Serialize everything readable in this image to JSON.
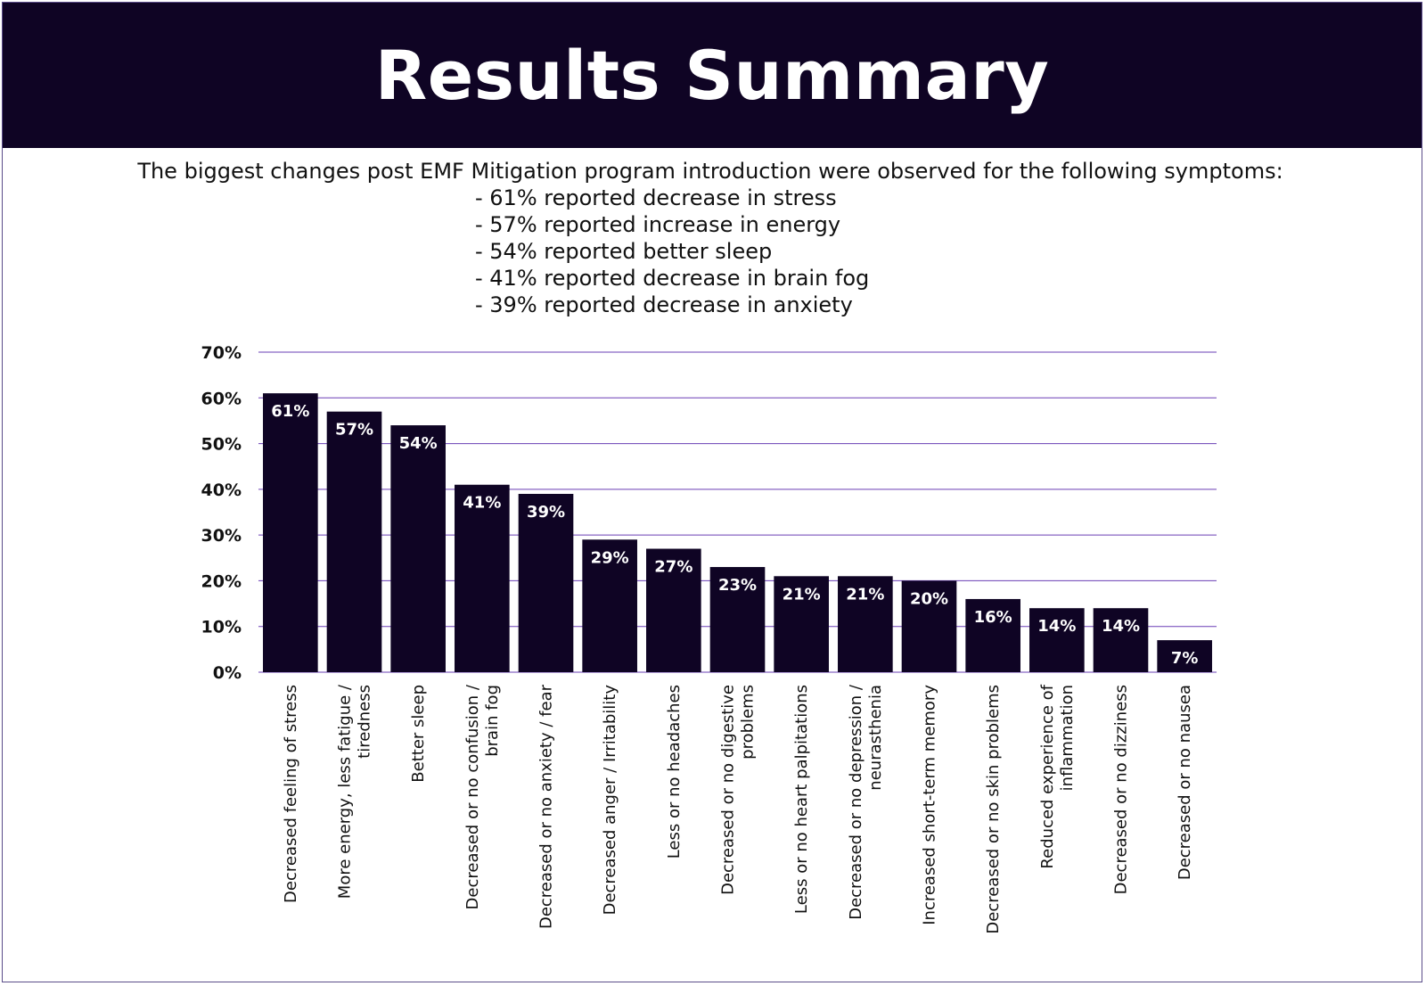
{
  "header": {
    "title": "Results Summary"
  },
  "intro": {
    "text": "The biggest changes post EMF Mitigation program introduction were observed for the following symptoms:",
    "bullets": [
      "- 61% reported decrease in stress",
      "- 57% reported increase in energy",
      "- 54% reported better sleep",
      "- 41% reported decrease in brain fog",
      "- 39% reported decrease in anxiety"
    ]
  },
  "colors": {
    "bar": "#0f0424",
    "grid": "#6a3fb5",
    "header_bg": "#0f0424"
  },
  "chart_data": {
    "type": "bar",
    "title": "",
    "xlabel": "",
    "ylabel": "",
    "ylim": [
      0,
      70
    ],
    "yticks": [
      0,
      10,
      20,
      30,
      40,
      50,
      60,
      70
    ],
    "ytick_labels": [
      "0%",
      "10%",
      "20%",
      "30%",
      "40%",
      "50%",
      "60%",
      "70%"
    ],
    "grid": true,
    "categories": [
      [
        "Decreased feeling of stress"
      ],
      [
        "More energy, less fatigue /",
        "tiredness"
      ],
      [
        "Better sleep"
      ],
      [
        "Decreased or no confusion /",
        "brain fog"
      ],
      [
        "Decreased or no anxiety / fear"
      ],
      [
        "Decreased anger / Irritability"
      ],
      [
        "Less or no headaches"
      ],
      [
        "Decreased or no digestive",
        "problems"
      ],
      [
        "Less or no heart palpitations"
      ],
      [
        "Decreased or no depression /",
        "neurasthenia"
      ],
      [
        "Increased short-term memory"
      ],
      [
        "Decreased or no skin problems"
      ],
      [
        "Reduced experience of",
        "inflammation"
      ],
      [
        "Decreased or no dizziness"
      ],
      [
        "Decreased or no nausea"
      ]
    ],
    "values": [
      61,
      57,
      54,
      41,
      39,
      29,
      27,
      23,
      21,
      21,
      20,
      16,
      14,
      14,
      7
    ],
    "data_labels": [
      "61%",
      "57%",
      "54%",
      "41%",
      "39%",
      "29%",
      "27%",
      "23%",
      "21%",
      "21%",
      "20%",
      "16%",
      "14%",
      "14%",
      "7%"
    ]
  }
}
